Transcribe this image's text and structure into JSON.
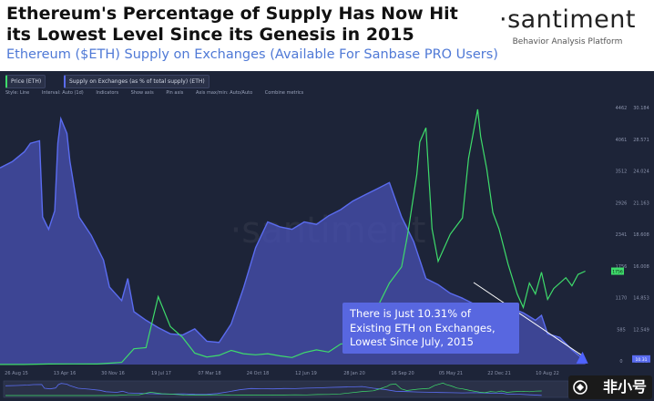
{
  "header": {
    "title": "Ethereum's Percentage of Supply Has Now Hit its Lowest Level Since its Genesis in 2015",
    "subtitle": "Ethereum ($ETH) Supply on Exchanges (Available For Sanbase PRO Users)",
    "brand_name": "·santiment",
    "brand_tagline": "Behavior Analysis Platform"
  },
  "legend_chips": [
    {
      "label": "Price (ETH)",
      "color": "#3edc6b"
    },
    {
      "label": "Supply on Exchanges (as % of total supply) (ETH)",
      "color": "#5a6cf0"
    }
  ],
  "toolbar": {
    "style": "Style: Line",
    "interval": "Interval: Auto (1d)",
    "indicators": "Indicators",
    "show_axis": "Show axis",
    "pin_axis": "Pin axis",
    "axis_minmax": "Axis max/min: Auto/Auto",
    "combine": "Combine metrics"
  },
  "watermark": "·santiment",
  "callout": {
    "line1": "There is Just 10.31% of",
    "line2": "Existing ETH on Exchanges,",
    "line3": "Lowest Since July, 2015"
  },
  "corner_badge": "非小号",
  "colors": {
    "background": "#1d2438",
    "price": "#3edc6b",
    "supply": "#5a6cf0",
    "callout": "#5867e0"
  },
  "chart_data": {
    "type": "line",
    "x_ticks": [
      "26 Aug 15",
      "13 Apr 16",
      "30 Nov 16",
      "19 Jul 17",
      "07 Mar 18",
      "24 Oct 18",
      "12 Jun 19",
      "28 Jan 20",
      "16 Sep 20",
      "05 May 21",
      "22 Dec 21",
      "10 Aug 22"
    ],
    "y_left_ticks": [
      "4462",
      "4061",
      "3512",
      "2926",
      "2341",
      "1756",
      "1170",
      "585",
      "0"
    ],
    "y_right_ticks": [
      "30.184",
      "28.571",
      "24.024",
      "21.163",
      "18.608",
      "16.008",
      "14.853",
      "12.549",
      "10.31"
    ],
    "price_current_label": "1756",
    "supply_current_label": "10.31",
    "series": [
      {
        "name": "Price (ETH)",
        "color": "#3edc6b",
        "axis": "left",
        "points": [
          [
            0.0,
            1
          ],
          [
            0.04,
            2
          ],
          [
            0.08,
            10
          ],
          [
            0.12,
            12
          ],
          [
            0.16,
            10
          ],
          [
            0.2,
            40
          ],
          [
            0.22,
            290
          ],
          [
            0.24,
            310
          ],
          [
            0.26,
            1250
          ],
          [
            0.28,
            700
          ],
          [
            0.3,
            500
          ],
          [
            0.32,
            210
          ],
          [
            0.34,
            140
          ],
          [
            0.36,
            170
          ],
          [
            0.38,
            260
          ],
          [
            0.4,
            200
          ],
          [
            0.42,
            180
          ],
          [
            0.44,
            200
          ],
          [
            0.46,
            160
          ],
          [
            0.48,
            130
          ],
          [
            0.5,
            220
          ],
          [
            0.52,
            270
          ],
          [
            0.54,
            230
          ],
          [
            0.56,
            380
          ],
          [
            0.58,
            400
          ],
          [
            0.6,
            600
          ],
          [
            0.64,
            1500
          ],
          [
            0.66,
            1800
          ],
          [
            0.67,
            2400
          ],
          [
            0.685,
            3500
          ],
          [
            0.69,
            4100
          ],
          [
            0.7,
            4360
          ],
          [
            0.71,
            2500
          ],
          [
            0.72,
            1900
          ],
          [
            0.74,
            2400
          ],
          [
            0.76,
            2700
          ],
          [
            0.77,
            3800
          ],
          [
            0.785,
            4700
          ],
          [
            0.79,
            4200
          ],
          [
            0.8,
            3600
          ],
          [
            0.81,
            2800
          ],
          [
            0.82,
            2500
          ],
          [
            0.835,
            1850
          ],
          [
            0.85,
            1300
          ],
          [
            0.86,
            1050
          ],
          [
            0.87,
            1500
          ],
          [
            0.88,
            1300
          ],
          [
            0.89,
            1700
          ],
          [
            0.9,
            1200
          ],
          [
            0.91,
            1400
          ],
          [
            0.93,
            1600
          ],
          [
            0.94,
            1450
          ],
          [
            0.95,
            1660
          ],
          [
            0.962,
            1720
          ]
        ]
      },
      {
        "name": "Supply on Exchanges (as % of total supply) (ETH)",
        "color": "#5a6cf0",
        "axis": "right",
        "points": [
          [
            0.0,
            26.0
          ],
          [
            0.02,
            26.5
          ],
          [
            0.04,
            27.3
          ],
          [
            0.05,
            28.0
          ],
          [
            0.065,
            28.2
          ],
          [
            0.07,
            22.0
          ],
          [
            0.08,
            21.0
          ],
          [
            0.09,
            22.5
          ],
          [
            0.095,
            28.0
          ],
          [
            0.1,
            30.0
          ],
          [
            0.11,
            28.8
          ],
          [
            0.115,
            26.5
          ],
          [
            0.13,
            22.0
          ],
          [
            0.15,
            20.5
          ],
          [
            0.17,
            18.5
          ],
          [
            0.18,
            16.3
          ],
          [
            0.2,
            15.2
          ],
          [
            0.21,
            17.0
          ],
          [
            0.22,
            14.3
          ],
          [
            0.24,
            13.6
          ],
          [
            0.26,
            13.0
          ],
          [
            0.28,
            12.5
          ],
          [
            0.3,
            12.4
          ],
          [
            0.32,
            12.9
          ],
          [
            0.34,
            11.9
          ],
          [
            0.36,
            11.8
          ],
          [
            0.38,
            13.3
          ],
          [
            0.4,
            16.2
          ],
          [
            0.42,
            19.5
          ],
          [
            0.44,
            21.6
          ],
          [
            0.46,
            21.2
          ],
          [
            0.48,
            21.0
          ],
          [
            0.5,
            21.6
          ],
          [
            0.52,
            21.4
          ],
          [
            0.54,
            22.1
          ],
          [
            0.56,
            22.6
          ],
          [
            0.58,
            23.3
          ],
          [
            0.6,
            23.8
          ],
          [
            0.62,
            24.3
          ],
          [
            0.64,
            24.8
          ],
          [
            0.66,
            22.0
          ],
          [
            0.68,
            20.0
          ],
          [
            0.7,
            17.0
          ],
          [
            0.72,
            16.5
          ],
          [
            0.74,
            15.8
          ],
          [
            0.76,
            15.4
          ],
          [
            0.78,
            14.9
          ],
          [
            0.8,
            14.6
          ],
          [
            0.82,
            14.3
          ],
          [
            0.84,
            14.6
          ],
          [
            0.86,
            14.2
          ],
          [
            0.88,
            13.6
          ],
          [
            0.89,
            14.0
          ],
          [
            0.9,
            12.5
          ],
          [
            0.92,
            12.2
          ],
          [
            0.94,
            11.2
          ],
          [
            0.962,
            10.31
          ]
        ]
      }
    ],
    "left_axis_range": [
      0,
      4800
    ],
    "right_axis_range": [
      10.0,
      31.2
    ],
    "grid": false,
    "legend": "top-left"
  }
}
